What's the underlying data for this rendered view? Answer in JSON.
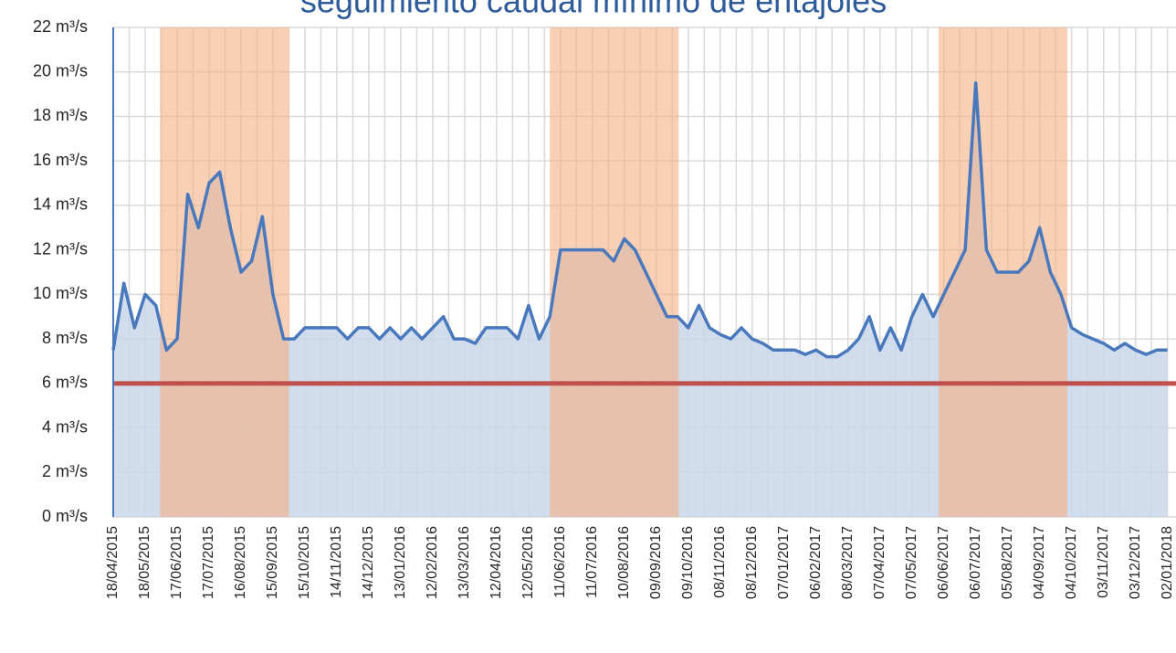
{
  "chart_data": {
    "type": "area-line",
    "title": "seguimiento caudal mínimo de entajoles",
    "xticks": [
      "18/04/2015",
      "18/05/2015",
      "17/06/2015",
      "17/07/2015",
      "16/08/2015",
      "15/09/2015",
      "15/10/2015",
      "14/11/2015",
      "14/12/2015",
      "13/01/2016",
      "12/02/2016",
      "13/03/2016",
      "12/04/2016",
      "12/05/2016",
      "11/06/2016",
      "11/07/2016",
      "10/08/2016",
      "09/09/2016",
      "09/10/2016",
      "08/11/2016",
      "08/12/2016",
      "07/01/2017",
      "06/02/2017",
      "08/03/2017",
      "07/04/2017",
      "07/05/2017",
      "06/06/2017",
      "06/07/2017",
      "05/08/2017",
      "04/09/2017",
      "04/10/2017",
      "03/11/2017",
      "03/12/2017",
      "02/01/2018"
    ],
    "xlim": [
      "18/04/2015",
      "10/01/2018"
    ],
    "ylim": [
      0,
      22
    ],
    "yticks": [
      {
        "value": 0,
        "label": "0 m³/s"
      },
      {
        "value": 2,
        "label": "2 m³/s"
      },
      {
        "value": 4,
        "label": "4 m³/s"
      },
      {
        "value": 6,
        "label": "6 m³/s"
      },
      {
        "value": 8,
        "label": "8 m³/s"
      },
      {
        "value": 10,
        "label": "10 m³/s"
      },
      {
        "value": 12,
        "label": "12 m³/s"
      },
      {
        "value": 14,
        "label": "14 m³/s"
      },
      {
        "value": 16,
        "label": "16 m³/s"
      },
      {
        "value": 18,
        "label": "18 m³/s"
      },
      {
        "value": 20,
        "label": "20 m³/s"
      },
      {
        "value": 22,
        "label": "22 m³/s"
      }
    ],
    "grid": true,
    "minor_xgrid": true,
    "bands": [
      {
        "start": "01/06/2015",
        "end": "30/09/2015",
        "color": "#f4b183"
      },
      {
        "start": "01/06/2016",
        "end": "30/09/2016",
        "color": "#f4b183"
      },
      {
        "start": "01/06/2017",
        "end": "30/09/2017",
        "color": "#f4b183"
      }
    ],
    "hlines": [
      {
        "value": 6,
        "color": "#c0504d"
      }
    ],
    "series": [
      {
        "color": "#4a78bd",
        "fill": "#c9d7ea",
        "x": [
          "18/04/2015",
          "28/04/2015",
          "08/05/2015",
          "18/05/2015",
          "28/05/2015",
          "07/06/2015",
          "17/06/2015",
          "27/06/2015",
          "07/07/2015",
          "17/07/2015",
          "27/07/2015",
          "06/08/2015",
          "16/08/2015",
          "26/08/2015",
          "05/09/2015",
          "15/09/2015",
          "25/09/2015",
          "05/10/2015",
          "15/10/2015",
          "25/10/2015",
          "04/11/2015",
          "14/11/2015",
          "24/11/2015",
          "04/12/2015",
          "14/12/2015",
          "24/12/2015",
          "03/01/2016",
          "13/01/2016",
          "23/01/2016",
          "02/02/2016",
          "12/02/2016",
          "22/02/2016",
          "03/03/2016",
          "13/03/2016",
          "23/03/2016",
          "02/04/2016",
          "12/04/2016",
          "22/04/2016",
          "02/05/2016",
          "12/05/2016",
          "22/05/2016",
          "01/06/2016",
          "11/06/2016",
          "21/06/2016",
          "01/07/2016",
          "11/07/2016",
          "21/07/2016",
          "31/07/2016",
          "10/08/2016",
          "20/08/2016",
          "30/08/2016",
          "09/09/2016",
          "19/09/2016",
          "29/09/2016",
          "09/10/2016",
          "19/10/2016",
          "29/10/2016",
          "08/11/2016",
          "18/11/2016",
          "28/11/2016",
          "08/12/2016",
          "18/12/2016",
          "28/12/2016",
          "07/01/2017",
          "17/01/2017",
          "27/01/2017",
          "06/02/2017",
          "16/02/2017",
          "26/02/2017",
          "08/03/2017",
          "18/03/2017",
          "28/03/2017",
          "07/04/2017",
          "17/04/2017",
          "27/04/2017",
          "07/05/2017",
          "17/05/2017",
          "27/05/2017",
          "06/06/2017",
          "16/06/2017",
          "26/06/2017",
          "06/07/2017",
          "16/07/2017",
          "26/07/2017",
          "05/08/2017",
          "15/08/2017",
          "25/08/2017",
          "04/09/2017",
          "14/09/2017",
          "24/09/2017",
          "04/10/2017",
          "14/10/2017",
          "24/10/2017",
          "03/11/2017",
          "13/11/2017",
          "23/11/2017",
          "03/12/2017",
          "13/12/2017",
          "23/12/2017",
          "02/01/2018"
        ],
        "values": [
          7.5,
          10.5,
          8.5,
          10,
          9.5,
          7.5,
          8,
          14.5,
          13,
          15,
          15.5,
          13,
          11,
          11.5,
          13.5,
          10,
          8,
          8,
          8.5,
          8.5,
          8.5,
          8.5,
          8,
          8.5,
          8.5,
          8,
          8.5,
          8,
          8.5,
          8,
          8.5,
          9,
          8,
          8,
          7.8,
          8.5,
          8.5,
          8.5,
          8,
          9.5,
          8,
          9,
          12,
          12,
          12,
          12,
          12,
          11.5,
          12.5,
          12,
          11,
          10,
          9,
          9,
          8.5,
          9.5,
          8.5,
          8.2,
          8,
          8.5,
          8,
          7.8,
          7.5,
          7.5,
          7.5,
          7.3,
          7.5,
          7.2,
          7.2,
          7.5,
          8,
          9,
          7.5,
          8.5,
          7.5,
          9,
          10,
          9,
          10,
          11,
          12,
          19.5,
          12,
          11,
          11,
          11,
          11.5,
          13,
          11,
          10,
          8.5,
          8.2,
          8,
          7.8,
          7.5,
          7.8,
          7.5,
          7.3,
          7.5,
          7.5
        ]
      }
    ]
  }
}
